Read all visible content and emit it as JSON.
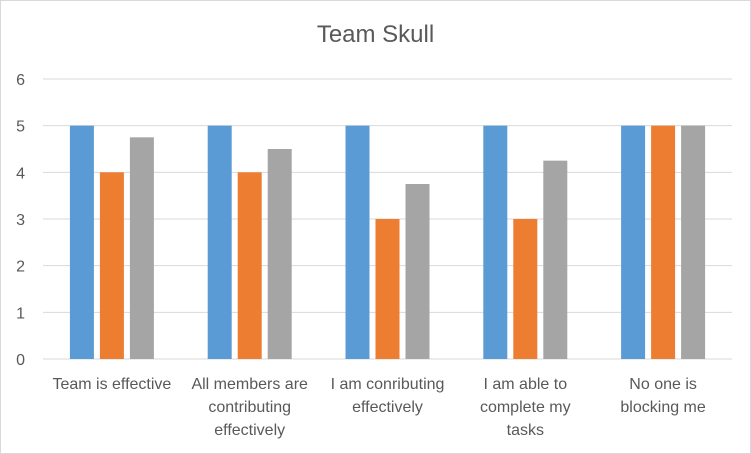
{
  "chart_data": {
    "type": "bar",
    "title": "Team Skull",
    "categories": [
      [
        "Team is effective"
      ],
      [
        "All members are",
        "contributing",
        "effectively"
      ],
      [
        "I am conributing",
        "effectively"
      ],
      [
        "I am able to",
        "complete my",
        "tasks"
      ],
      [
        "No one is",
        "blocking me"
      ]
    ],
    "series": [
      {
        "values": [
          5,
          5,
          5,
          5,
          5
        ],
        "color": "#5b9bd5"
      },
      {
        "values": [
          4,
          4,
          3,
          3,
          5
        ],
        "color": "#ed7d31"
      },
      {
        "values": [
          4.75,
          4.5,
          3.75,
          4.25,
          5
        ],
        "color": "#a5a5a5"
      }
    ],
    "ylim": [
      0,
      6
    ],
    "yticks": [
      0,
      1,
      2,
      3,
      4,
      5,
      6
    ],
    "grid": true,
    "legend": "none",
    "gridline_color": "#d9d9d9",
    "text_color": "#595959"
  }
}
